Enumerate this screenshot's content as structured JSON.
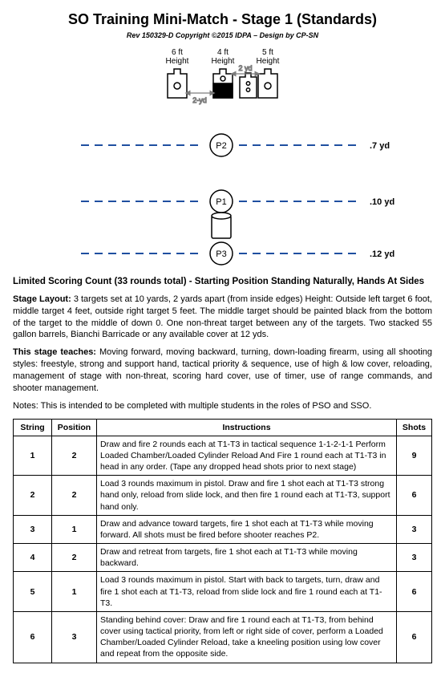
{
  "header": {
    "title": "SO Training Mini-Match - Stage 1 (Standards)",
    "subtitle": "Rev 150329-D Copyright ©2015 IDPA – Design by CP-SN"
  },
  "diagram": {
    "targets": [
      {
        "label": "6 ft",
        "sub": "Height",
        "fill": "#ffffff",
        "circle": false
      },
      {
        "label": "4 ft",
        "sub": "Height",
        "fill": "#000000",
        "circle": false
      },
      {
        "label": "5 ft",
        "sub": "Height",
        "fill": "#ffffff",
        "circle": true
      }
    ],
    "target_spacing_label": "2-yd",
    "target_spacing_label_right": "2 yd",
    "positions": [
      {
        "name": "P2",
        "y_label": ".7 yd"
      },
      {
        "name": "P1",
        "y_label": ".10 yd"
      },
      {
        "name": "P3",
        "y_label": ".12 yd"
      }
    ],
    "dash_color": "#1f4fa0",
    "stroke_color": "#000000",
    "arrow_color": "#7d7d7d"
  },
  "scoring_heading": "Limited Scoring Count (33 rounds total) - Starting Position Standing Naturally, Hands At Sides",
  "paragraphs": {
    "layout_label": "Stage Layout:",
    "layout_text": " 3 targets set at 10 yards, 2 yards apart (from inside edges) Height: Outside left target 6 foot, middle target 4 feet, outside right target 5 feet. The middle target should be painted black from the bottom of the target to the middle of down 0. One non-threat target between any of the targets. Two stacked 55 gallon barrels, Bianchi Barricade or any available cover at 12 yds.",
    "teaches_label": "This stage teaches:",
    "teaches_text": " Moving forward, moving backward, turning, down-loading firearm, using all shooting styles: freestyle, strong and support hand, tactical priority & sequence, use of high & low cover, reloading, management of stage with non-threat, scoring hard cover, use of timer, use of range commands, and shooter management.",
    "notes": "Notes: This is intended to be completed with multiple students in the roles of PSO and SSO."
  },
  "table": {
    "headers": {
      "string": "String",
      "position": "Position",
      "instructions": "Instructions",
      "shots": "Shots"
    },
    "rows": [
      {
        "string": "1",
        "position": "2",
        "shots": "9",
        "instructions": "Draw and fire 2 rounds each at T1-T3 in tactical sequence 1-1-2-1-1 Perform Loaded Chamber/Loaded Cylinder Reload And Fire 1 round each at T1-T3 in head in any order.  (Tape any dropped head shots prior to next stage)"
      },
      {
        "string": "2",
        "position": "2",
        "shots": "6",
        "instructions": "Load 3 rounds maximum in pistol. Draw and fire 1 shot each at T1-T3 strong hand only, reload from slide lock, and then fire 1 round each at T1-T3, support hand only."
      },
      {
        "string": "3",
        "position": "1",
        "shots": "3",
        "instructions": "Draw and advance toward targets, fire 1 shot each at T1-T3 while moving forward.  All shots must be fired before shooter reaches P2."
      },
      {
        "string": "4",
        "position": "2",
        "shots": "3",
        "instructions": "Draw and retreat from targets, fire 1 shot each at T1-T3 while moving backward."
      },
      {
        "string": "5",
        "position": "1",
        "shots": "6",
        "instructions": "Load 3 rounds maximum in pistol. Start with back to targets, turn, draw and fire 1 shot each at T1-T3, reload from slide lock and fire 1 round each at T1-T3."
      },
      {
        "string": "6",
        "position": "3",
        "shots": "6",
        "instructions": "Standing behind cover: Draw and fire 1 round each at T1-T3, from behind cover using tactical priority, from left or right side of cover, perform a Loaded Chamber/Loaded Cylinder Reload, take a kneeling position using low cover and repeat from the opposite side."
      }
    ]
  }
}
